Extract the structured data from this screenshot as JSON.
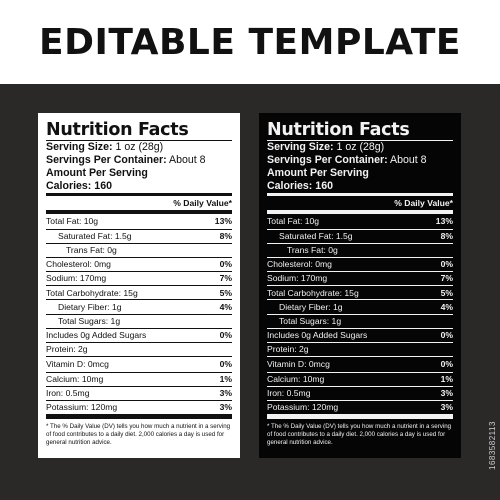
{
  "header": {
    "title": "EDITABLE TEMPLATE"
  },
  "side_id": "1683582113",
  "nutrition": {
    "title": "Nutrition Facts",
    "serving_size_label": "Serving Size:",
    "serving_size_value": "1 oz (28g)",
    "servings_label": "Servings Per Container:",
    "servings_value": "About 8",
    "amount_per_serving": "Amount Per Serving",
    "calories_label": "Calories:",
    "calories_value": "160",
    "dv_header": "% Daily Value*",
    "rows": [
      {
        "name": "Total Fat: 10g",
        "pct": "13%"
      },
      {
        "name": "Saturated Fat: 1.5g",
        "pct": "8%"
      },
      {
        "name": "Trans Fat: 0g",
        "pct": ""
      },
      {
        "name": "Cholesterol: 0mg",
        "pct": "0%"
      },
      {
        "name": "Sodium: 170mg",
        "pct": "7%"
      },
      {
        "name": "Total Carbohydrate: 15g",
        "pct": "5%"
      },
      {
        "name": "Dietary Fiber: 1g",
        "pct": "4%"
      },
      {
        "name": "Total Sugars: 1g",
        "pct": ""
      },
      {
        "name": "Includes 0g Added Sugars",
        "pct": "0%"
      },
      {
        "name": "Protein: 2g",
        "pct": ""
      },
      {
        "name": "Vitamin D: 0mcg",
        "pct": "0%"
      },
      {
        "name": "Calcium: 10mg",
        "pct": "1%"
      },
      {
        "name": "Iron: 0.5mg",
        "pct": "3%"
      },
      {
        "name": "Potassium: 120mg",
        "pct": "3%"
      }
    ],
    "footnote": "* The % Daily Value (DV) tells you how much a nutrient in a serving of food contributes to a daily diet. 2,000 calories a day is used for general nutrition advice."
  },
  "colors": {
    "background": "#2b2828",
    "light_label": "#ffffff",
    "dark_label": "#050505"
  }
}
